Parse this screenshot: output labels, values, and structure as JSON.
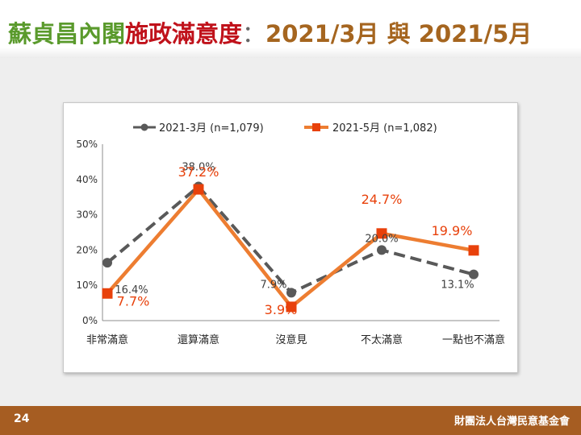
{
  "slide": {
    "title_green": "蘇貞昌內閣",
    "title_red": "施政滿意度",
    "title_colon": "：",
    "title_date1": "2021/3月",
    "title_and": "與",
    "title_date2": "2021/5月",
    "page_number": "24",
    "organization": "財團法人台灣民意基金會"
  },
  "colors": {
    "series1": "#595959",
    "series2_line": "#ed7d31",
    "series2_marker": "#e8410b",
    "label_red": "#e8410b",
    "label_dark": "#404040"
  },
  "chart_data": {
    "type": "line",
    "categories": [
      "非常滿意",
      "還算滿意",
      "沒意見",
      "不太滿意",
      "一點也不滿意"
    ],
    "series": [
      {
        "name": "2021-3月 (n=1,079)",
        "values": [
          16.4,
          38.0,
          7.9,
          20.0,
          13.1
        ],
        "labels": [
          "16.4%",
          "38.0%",
          "7.9%",
          "20.0%",
          "13.1%"
        ],
        "style": "dashed",
        "marker": "circle"
      },
      {
        "name": "2021-5月 (n=1,082)",
        "values": [
          7.7,
          37.2,
          3.9,
          24.7,
          19.9
        ],
        "labels": [
          "7.7%",
          "37.2%",
          "3.9%",
          "24.7%",
          "19.9%"
        ],
        "style": "solid",
        "marker": "square"
      }
    ],
    "y_ticks": [
      "0%",
      "10%",
      "20%",
      "30%",
      "40%",
      "50%"
    ],
    "ylim": [
      0,
      50
    ],
    "grid": false,
    "legend_position": "top"
  }
}
